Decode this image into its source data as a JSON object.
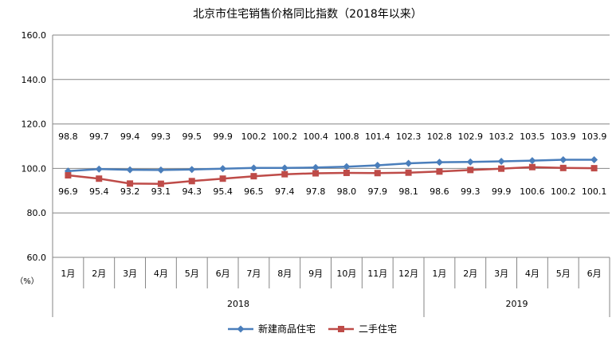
{
  "chart_data": {
    "type": "line",
    "title": "北京市住宅销售价格同比指数（2018年以来）",
    "unit_label": "（%）",
    "ylim": [
      60,
      160
    ],
    "yticks": [
      "160.0",
      "140.0",
      "120.0",
      "100.0",
      "80.0",
      "60.0"
    ],
    "categories": [
      "1月",
      "2月",
      "3月",
      "4月",
      "5月",
      "6月",
      "7月",
      "8月",
      "9月",
      "10月",
      "11月",
      "12月",
      "1月",
      "2月",
      "3月",
      "4月",
      "5月",
      "6月"
    ],
    "year_groups": [
      {
        "label": "2018",
        "count": 12
      },
      {
        "label": "2019",
        "count": 6
      }
    ],
    "grid": "horizontal",
    "legend_position": "bottom",
    "series": [
      {
        "name": "新建商品住宅",
        "color": "#4a7ebb",
        "marker": "diamond",
        "values": [
          98.8,
          99.7,
          99.4,
          99.3,
          99.5,
          99.9,
          100.2,
          100.2,
          100.4,
          100.8,
          101.4,
          102.3,
          102.8,
          102.9,
          103.2,
          103.5,
          103.9,
          103.9
        ],
        "labels": [
          "98.8",
          "99.7",
          "99.4",
          "99.3",
          "99.5",
          "99.9",
          "100.2",
          "100.2",
          "100.4",
          "100.8",
          "101.4",
          "102.3",
          "102.8",
          "102.9",
          "103.2",
          "103.5",
          "103.9",
          "103.9"
        ]
      },
      {
        "name": "二手住宅",
        "color": "#be4b48",
        "marker": "square",
        "values": [
          96.9,
          95.4,
          93.2,
          93.1,
          94.3,
          95.4,
          96.5,
          97.4,
          97.8,
          98.0,
          97.9,
          98.1,
          98.6,
          99.3,
          99.9,
          100.6,
          100.2,
          100.1
        ],
        "labels": [
          "96.9",
          "95.4",
          "93.2",
          "93.1",
          "94.3",
          "95.4",
          "96.5",
          "97.4",
          "97.8",
          "98.0",
          "97.9",
          "98.1",
          "98.6",
          "99.3",
          "99.9",
          "100.6",
          "100.2",
          "100.1"
        ]
      }
    ]
  }
}
